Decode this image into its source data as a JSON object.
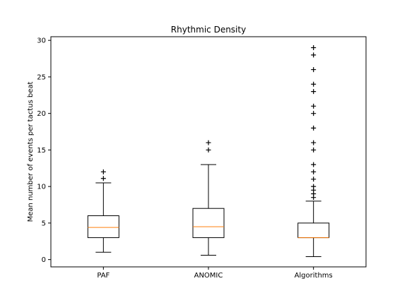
{
  "chart_data": {
    "type": "box",
    "title": "Rhythmic Density",
    "xlabel": "",
    "ylabel": "Mean number of events per tactus beat",
    "categories": [
      "PAF",
      "ANOMIC",
      "Algorithms"
    ],
    "ylim": [
      -1,
      30.5
    ],
    "yticks": [
      0,
      5,
      10,
      15,
      20,
      25,
      30
    ],
    "grid": false,
    "boxes": [
      {
        "name": "PAF",
        "whisker_low": 1.0,
        "q1": 3.0,
        "median": 4.4,
        "q3": 6.0,
        "whisker_high": 10.5,
        "outliers": [
          11.1,
          12.0
        ]
      },
      {
        "name": "ANOMIC",
        "whisker_low": 0.6,
        "q1": 3.0,
        "median": 4.5,
        "q3": 7.0,
        "whisker_high": 13.0,
        "outliers": [
          15.0,
          16.0
        ]
      },
      {
        "name": "Algorithms",
        "whisker_low": 0.4,
        "q1": 3.0,
        "median": 3.0,
        "q3": 5.0,
        "whisker_high": 8.0,
        "outliers": [
          8.5,
          9.0,
          9.5,
          10.0,
          11.0,
          12.0,
          13.0,
          15.0,
          16.0,
          18.0,
          20.0,
          21.0,
          23.0,
          24.0,
          26.0,
          28.0,
          29.0
        ]
      }
    ],
    "colors": {
      "box": "#000000",
      "median": "#ff7f0e",
      "outlier": "#000000"
    }
  }
}
